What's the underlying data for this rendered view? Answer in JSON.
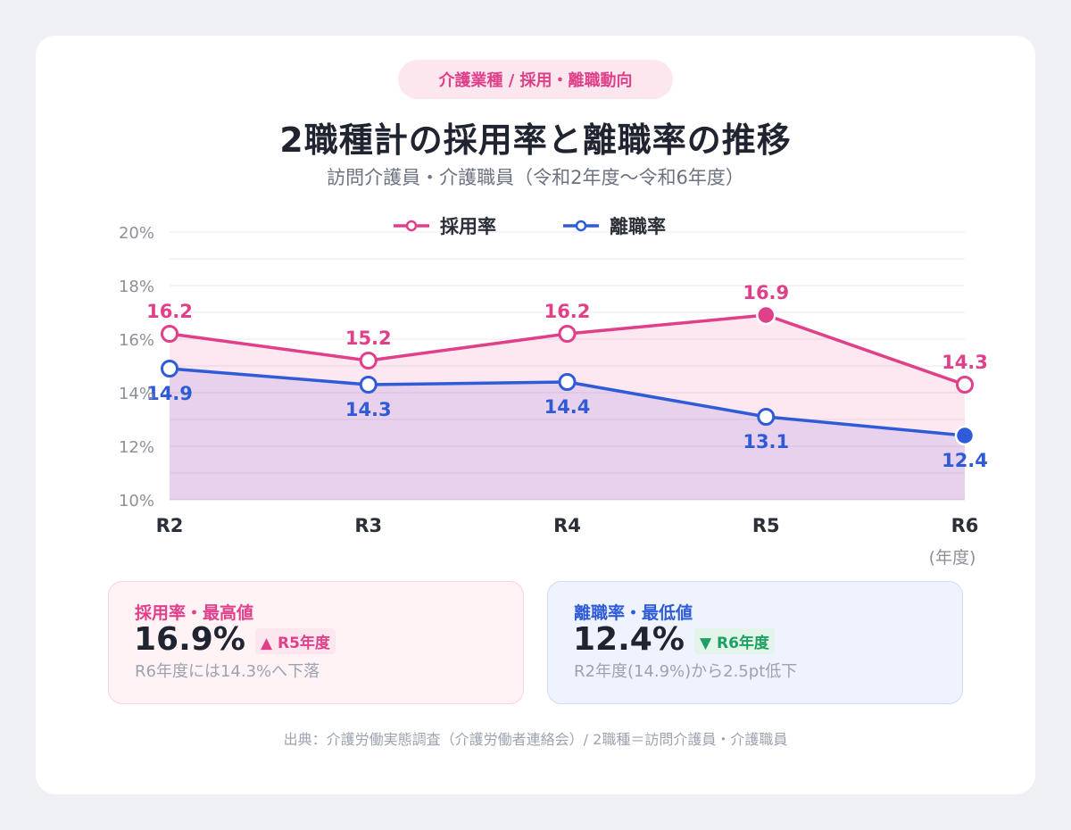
{
  "header": {
    "badge": "介護業種 / 採用・離職動向",
    "title": "2職種計の採用率と離職率の推移",
    "subtitle": "訪問介護員・介護職員（令和2年度〜令和6年度）"
  },
  "chart_data": {
    "type": "area",
    "categories": [
      "R2",
      "R3",
      "R4",
      "R5",
      "R6"
    ],
    "xlabel": "(年度)",
    "ylabel": "",
    "ylim": [
      10,
      20
    ],
    "yticks": [
      "10%",
      "12%",
      "14%",
      "16%",
      "18%",
      "20%"
    ],
    "legend_position": "top-center",
    "grid": true,
    "series": [
      {
        "name": "採用率",
        "color": "#e0408a",
        "values": [
          16.2,
          15.2,
          16.2,
          16.9,
          14.3
        ],
        "labels": [
          "16.2",
          "15.2",
          "16.2",
          "16.9",
          "14.3"
        ],
        "highlight_index": 3
      },
      {
        "name": "離職率",
        "color": "#2f5bd8",
        "values": [
          14.9,
          14.3,
          14.4,
          13.1,
          12.4
        ],
        "labels": [
          "14.9",
          "14.3",
          "14.4",
          "13.1",
          "12.4"
        ],
        "highlight_index": 4
      }
    ]
  },
  "summary": {
    "hire": {
      "label": "採用率・最高値",
      "value": "16.9%",
      "trend": "▲ R5年度",
      "note": "R6年度には14.3%へ下落"
    },
    "leave": {
      "label": "離職率・最低値",
      "value": "12.4%",
      "trend": "▼ R6年度",
      "note": "R2年度(14.9%)から2.5pt低下"
    }
  },
  "source": "出典：介護労働実態調査（介護労働者連絡会）/ 2職種＝訪問介護員・介護職員"
}
